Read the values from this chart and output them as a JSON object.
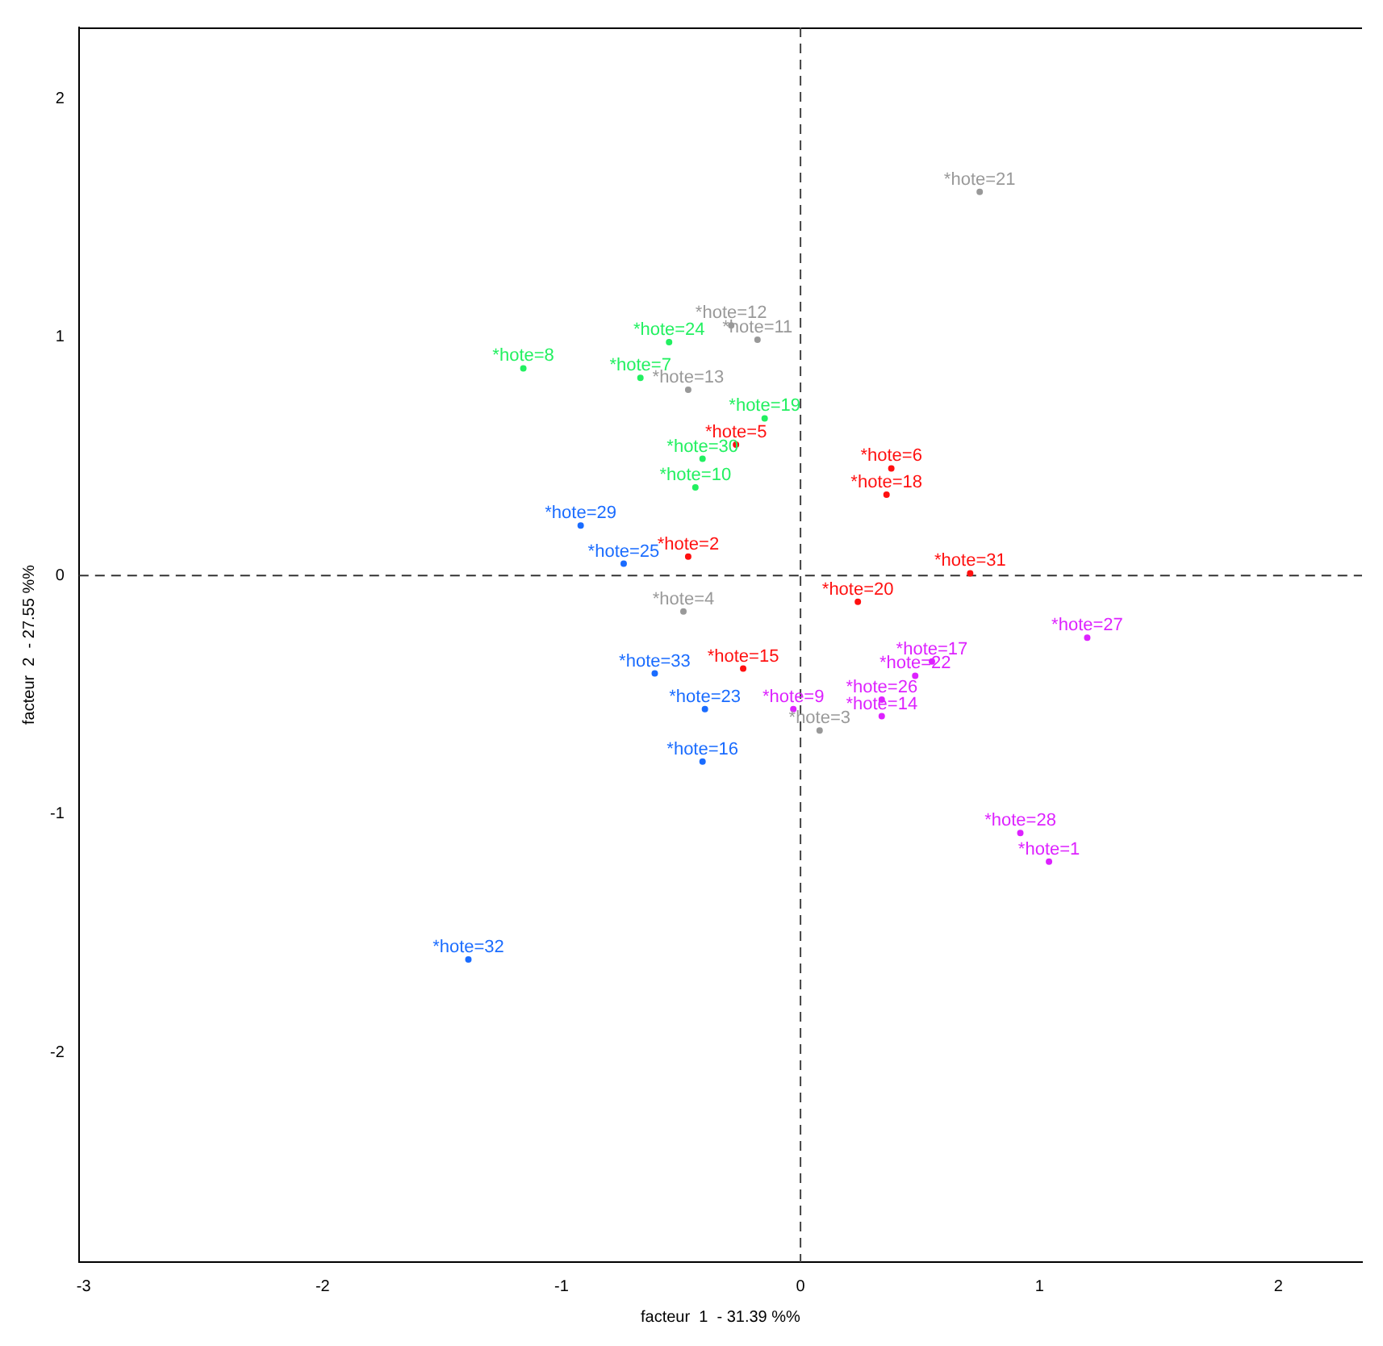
{
  "chart_data": {
    "type": "scatter",
    "xlabel": "facteur  1  - 31.39 %%",
    "ylabel": "facteur  2  - 27.55 %%",
    "xlim": [
      -3.02,
      2.35
    ],
    "ylim": [
      -2.88,
      2.3
    ],
    "xticks": [
      -3,
      -2,
      -1,
      0,
      1,
      2
    ],
    "yticks": [
      -2,
      -1,
      0,
      1,
      2
    ],
    "grid": false,
    "marker": "circle",
    "ref_lines": [
      {
        "axis": "x",
        "value": 0,
        "color": "#444444",
        "line_style": "dashed"
      },
      {
        "axis": "y",
        "value": 0,
        "color": "#333333",
        "line_style": "dashed"
      }
    ],
    "series": [
      {
        "color": "#999999",
        "x": [
          0.75,
          -0.29,
          -0.18,
          -0.47,
          -0.49,
          0.08
        ],
        "values": [
          1.61,
          1.05,
          0.99,
          0.78,
          -0.15,
          -0.65
        ]
      },
      {
        "color": "#22f060",
        "x": [
          -0.55,
          -1.16,
          -0.67,
          -0.15,
          -0.41,
          -0.44
        ],
        "values": [
          0.98,
          0.87,
          0.83,
          0.66,
          0.49,
          0.37
        ]
      },
      {
        "color": "#ff1010",
        "x": [
          -0.27,
          0.38,
          0.36,
          -0.47,
          0.71,
          0.24,
          -0.24
        ],
        "values": [
          0.55,
          0.45,
          0.34,
          0.08,
          0.01,
          -0.11,
          -0.39
        ]
      },
      {
        "color": "#1a6cff",
        "x": [
          -0.92,
          -0.74,
          -0.61,
          -0.4,
          -0.41,
          -1.39
        ],
        "values": [
          0.21,
          0.05,
          -0.41,
          -0.56,
          -0.78,
          -1.61
        ]
      },
      {
        "color": "#dd22ff",
        "x": [
          1.2,
          0.55,
          0.48,
          0.34,
          -0.03,
          0.34,
          0.92,
          1.04
        ],
        "values": [
          -0.26,
          -0.36,
          -0.42,
          -0.52,
          -0.56,
          -0.59,
          -1.08,
          -1.2
        ]
      }
    ],
    "annotations": [
      {
        "text": "*hote=21",
        "x": 0.75,
        "y": 1.61
      },
      {
        "text": "*hote=12",
        "x": -0.29,
        "y": 1.05
      },
      {
        "text": "*hote=11",
        "x": -0.18,
        "y": 0.99
      },
      {
        "text": "*hote=13",
        "x": -0.47,
        "y": 0.78
      },
      {
        "text": "*hote=4",
        "x": -0.49,
        "y": -0.15
      },
      {
        "text": "*hote=3",
        "x": 0.08,
        "y": -0.65
      },
      {
        "text": "*hote=24",
        "x": -0.55,
        "y": 0.98
      },
      {
        "text": "*hote=8",
        "x": -1.16,
        "y": 0.87
      },
      {
        "text": "*hote=7",
        "x": -0.67,
        "y": 0.83
      },
      {
        "text": "*hote=19",
        "x": -0.15,
        "y": 0.66
      },
      {
        "text": "*hote=30",
        "x": -0.41,
        "y": 0.49
      },
      {
        "text": "*hote=10",
        "x": -0.44,
        "y": 0.37
      },
      {
        "text": "*hote=5",
        "x": -0.27,
        "y": 0.55
      },
      {
        "text": "*hote=6",
        "x": 0.38,
        "y": 0.45
      },
      {
        "text": "*hote=18",
        "x": 0.36,
        "y": 0.34
      },
      {
        "text": "*hote=2",
        "x": -0.47,
        "y": 0.08
      },
      {
        "text": "*hote=31",
        "x": 0.71,
        "y": 0.01
      },
      {
        "text": "*hote=20",
        "x": 0.24,
        "y": -0.11
      },
      {
        "text": "*hote=15",
        "x": -0.24,
        "y": -0.39
      },
      {
        "text": "*hote=29",
        "x": -0.92,
        "y": 0.21
      },
      {
        "text": "*hote=25",
        "x": -0.74,
        "y": 0.05
      },
      {
        "text": "*hote=33",
        "x": -0.61,
        "y": -0.41
      },
      {
        "text": "*hote=23",
        "x": -0.4,
        "y": -0.56
      },
      {
        "text": "*hote=16",
        "x": -0.41,
        "y": -0.78
      },
      {
        "text": "*hote=32",
        "x": -1.39,
        "y": -1.61
      },
      {
        "text": "*hote=27",
        "x": 1.2,
        "y": -0.26
      },
      {
        "text": "*hote=17",
        "x": 0.55,
        "y": -0.36
      },
      {
        "text": "*hote=22",
        "x": 0.48,
        "y": -0.42
      },
      {
        "text": "*hote=26",
        "x": 0.34,
        "y": -0.52
      },
      {
        "text": "*hote=9",
        "x": -0.03,
        "y": -0.56
      },
      {
        "text": "*hote=14",
        "x": 0.34,
        "y": -0.59
      },
      {
        "text": "*hote=28",
        "x": 0.92,
        "y": -1.08
      },
      {
        "text": "*hote=1",
        "x": 1.04,
        "y": -1.2
      }
    ]
  }
}
